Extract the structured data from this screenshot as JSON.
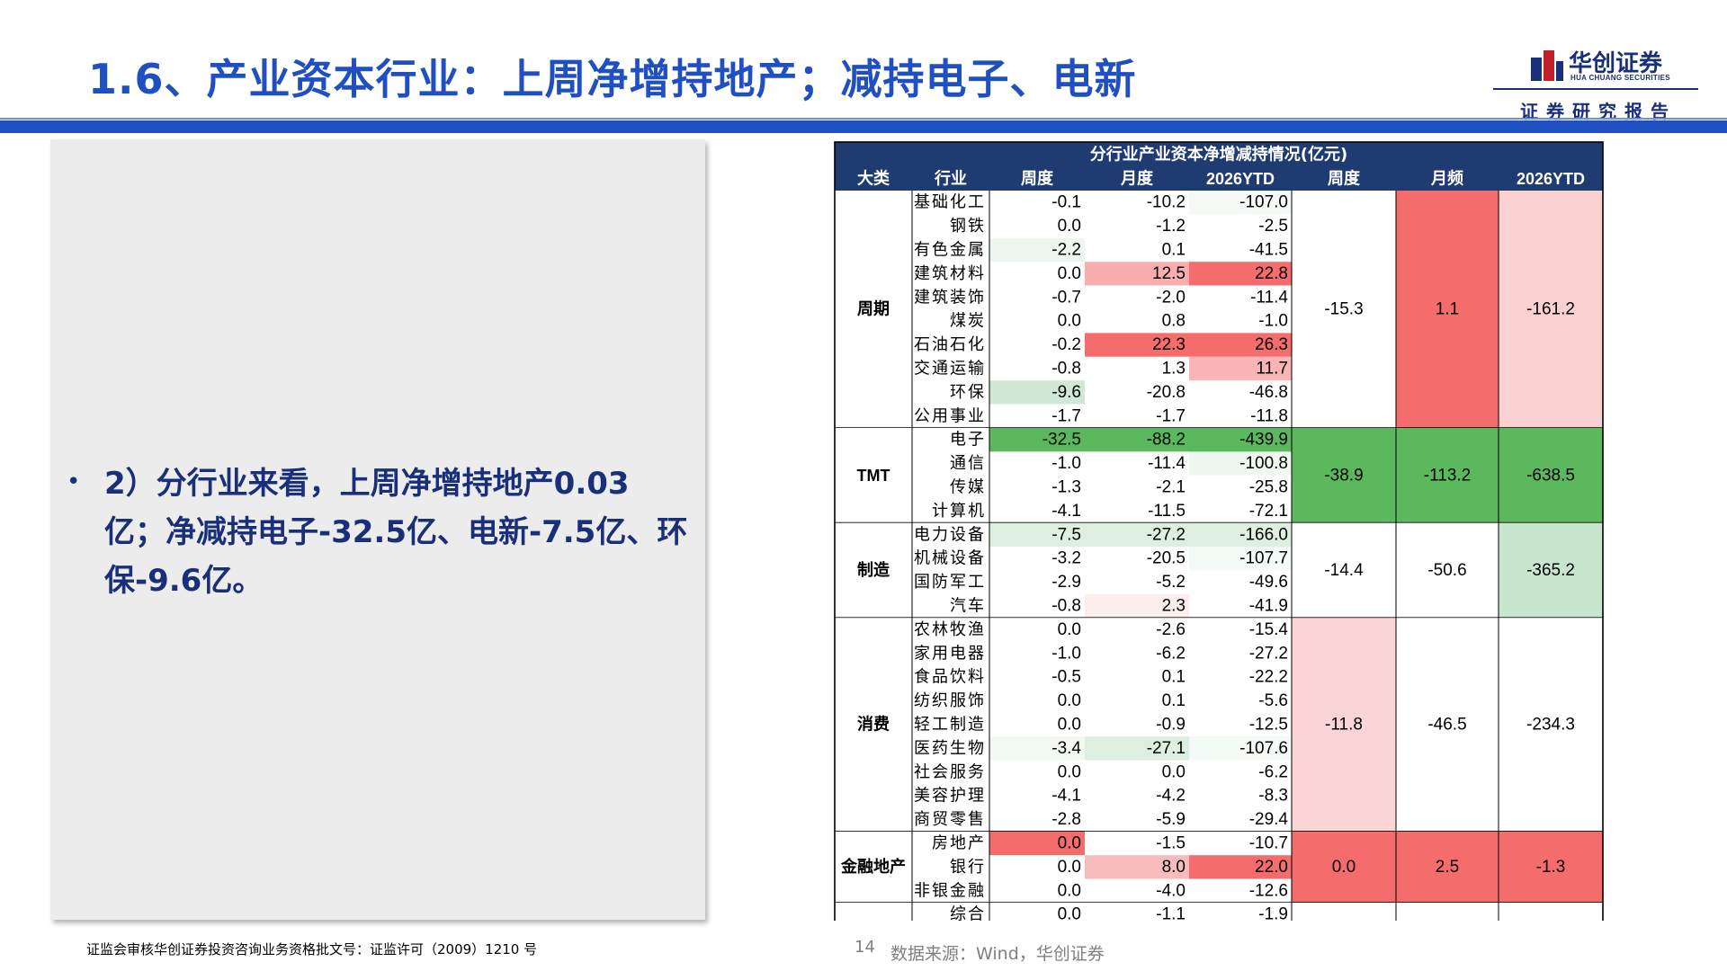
{
  "header": {
    "title": "1.6、产业资本行业：上周净增持地产；减持电子、电新",
    "logo_cn": "华创证券",
    "logo_en": "HUA CHUANG SECURITIES",
    "report_tag": "证券研究报告"
  },
  "left_panel": {
    "bullet": "•",
    "text": "2）分行业来看，上周净增持地产0.03亿；净减持电子-32.5亿、电新-7.5亿、环保-9.6亿。"
  },
  "table": {
    "title": "分行业产业资本净增减持情况(亿元)",
    "headers": [
      "大类",
      "行业",
      "周度",
      "月度",
      "2026YTD",
      "周度",
      "月频",
      "2026YTD"
    ],
    "groups": [
      {
        "name": "周期",
        "summary": [
          "-15.3",
          "1.1",
          "-161.2"
        ],
        "summary_colors": [
          "#ffffff",
          "#f56c6c",
          "#fbd0d0"
        ],
        "rows": [
          {
            "industry": "基础化工",
            "vals": [
              "-0.1",
              "-10.2",
              "-107.0"
            ],
            "colors": [
              "#ffffff",
              "#ffffff",
              "#f6faf7"
            ]
          },
          {
            "industry": "钢铁",
            "vals": [
              "0.0",
              "-1.2",
              "-2.5"
            ],
            "colors": [
              "#ffffff",
              "#ffffff",
              "#ffffff"
            ]
          },
          {
            "industry": "有色金属",
            "vals": [
              "-2.2",
              "0.1",
              "-41.5"
            ],
            "colors": [
              "#edf6ef",
              "#ffffff",
              "#ffffff"
            ]
          },
          {
            "industry": "建筑材料",
            "vals": [
              "0.0",
              "12.5",
              "22.8"
            ],
            "colors": [
              "#ffffff",
              "#f8aeae",
              "#f56c6c"
            ]
          },
          {
            "industry": "建筑装饰",
            "vals": [
              "-0.7",
              "-2.0",
              "-11.4"
            ],
            "colors": [
              "#ffffff",
              "#ffffff",
              "#ffffff"
            ]
          },
          {
            "industry": "煤炭",
            "vals": [
              "0.0",
              "0.8",
              "-1.0"
            ],
            "colors": [
              "#ffffff",
              "#ffffff",
              "#ffffff"
            ]
          },
          {
            "industry": "石油石化",
            "vals": [
              "-0.2",
              "22.3",
              "26.3"
            ],
            "colors": [
              "#ffffff",
              "#f56c6c",
              "#f56c6c"
            ]
          },
          {
            "industry": "交通运输",
            "vals": [
              "-0.8",
              "1.3",
              "11.7"
            ],
            "colors": [
              "#ffffff",
              "#ffffff",
              "#f9b5b5"
            ]
          },
          {
            "industry": "环保",
            "vals": [
              "-9.6",
              "-20.8",
              "-46.8"
            ],
            "colors": [
              "#cfe9d5",
              "#ffffff",
              "#ffffff"
            ]
          },
          {
            "industry": "公用事业",
            "vals": [
              "-1.7",
              "-1.7",
              "-11.8"
            ],
            "colors": [
              "#ffffff",
              "#ffffff",
              "#ffffff"
            ]
          }
        ]
      },
      {
        "name": "TMT",
        "summary": [
          "-38.9",
          "-113.2",
          "-638.5"
        ],
        "summary_colors": [
          "#5cb85c",
          "#5cb85c",
          "#5cb85c"
        ],
        "rows": [
          {
            "industry": "电子",
            "vals": [
              "-32.5",
              "-88.2",
              "-439.9"
            ],
            "colors": [
              "#5cb85c",
              "#5cb85c",
              "#5cb85c"
            ]
          },
          {
            "industry": "通信",
            "vals": [
              "-1.0",
              "-11.4",
              "-100.8"
            ],
            "colors": [
              "#ffffff",
              "#ffffff",
              "#eef7f0"
            ]
          },
          {
            "industry": "传媒",
            "vals": [
              "-1.3",
              "-2.1",
              "-25.8"
            ],
            "colors": [
              "#ffffff",
              "#ffffff",
              "#ffffff"
            ]
          },
          {
            "industry": "计算机",
            "vals": [
              "-4.1",
              "-11.5",
              "-72.1"
            ],
            "colors": [
              "#ffffff",
              "#ffffff",
              "#ffffff"
            ]
          }
        ]
      },
      {
        "name": "制造",
        "summary": [
          "-14.4",
          "-50.6",
          "-365.2"
        ],
        "summary_colors": [
          "#ffffff",
          "#ffffff",
          "#c8e6ce"
        ],
        "rows": [
          {
            "industry": "电力设备",
            "vals": [
              "-7.5",
              "-27.2",
              "-166.0"
            ],
            "colors": [
              "#dcefe0",
              "#dcefe0",
              "#dcefe0"
            ]
          },
          {
            "industry": "机械设备",
            "vals": [
              "-3.2",
              "-20.5",
              "-107.7"
            ],
            "colors": [
              "#ffffff",
              "#ffffff",
              "#f4faf5"
            ]
          },
          {
            "industry": "国防军工",
            "vals": [
              "-2.9",
              "-5.2",
              "-49.6"
            ],
            "colors": [
              "#ffffff",
              "#ffffff",
              "#ffffff"
            ]
          },
          {
            "industry": "汽车",
            "vals": [
              "-0.8",
              "2.3",
              "-41.9"
            ],
            "colors": [
              "#ffffff",
              "#fdeeee",
              "#ffffff"
            ]
          }
        ]
      },
      {
        "name": "消费",
        "summary": [
          "-11.8",
          "-46.5",
          "-234.3"
        ],
        "summary_colors": [
          "#fbd5d5",
          "#ffffff",
          "#ffffff"
        ],
        "rows": [
          {
            "industry": "农林牧渔",
            "vals": [
              "0.0",
              "-2.6",
              "-15.4"
            ],
            "colors": [
              "#ffffff",
              "#ffffff",
              "#ffffff"
            ]
          },
          {
            "industry": "家用电器",
            "vals": [
              "-1.0",
              "-6.2",
              "-27.2"
            ],
            "colors": [
              "#ffffff",
              "#ffffff",
              "#ffffff"
            ]
          },
          {
            "industry": "食品饮料",
            "vals": [
              "-0.5",
              "0.1",
              "-22.2"
            ],
            "colors": [
              "#ffffff",
              "#ffffff",
              "#ffffff"
            ]
          },
          {
            "industry": "纺织服饰",
            "vals": [
              "0.0",
              "0.1",
              "-5.6"
            ],
            "colors": [
              "#ffffff",
              "#ffffff",
              "#ffffff"
            ]
          },
          {
            "industry": "轻工制造",
            "vals": [
              "0.0",
              "-0.9",
              "-12.5"
            ],
            "colors": [
              "#ffffff",
              "#ffffff",
              "#ffffff"
            ]
          },
          {
            "industry": "医药生物",
            "vals": [
              "-3.4",
              "-27.1",
              "-107.6"
            ],
            "colors": [
              "#f2f9f3",
              "#dcefe0",
              "#f4faf5"
            ]
          },
          {
            "industry": "社会服务",
            "vals": [
              "0.0",
              "0.0",
              "-6.2"
            ],
            "colors": [
              "#ffffff",
              "#ffffff",
              "#ffffff"
            ]
          },
          {
            "industry": "美容护理",
            "vals": [
              "-4.1",
              "-4.2",
              "-8.3"
            ],
            "colors": [
              "#ffffff",
              "#ffffff",
              "#ffffff"
            ]
          },
          {
            "industry": "商贸零售",
            "vals": [
              "-2.8",
              "-5.9",
              "-29.4"
            ],
            "colors": [
              "#ffffff",
              "#ffffff",
              "#ffffff"
            ]
          }
        ]
      },
      {
        "name": "金融地产",
        "summary": [
          "0.0",
          "2.5",
          "-1.3"
        ],
        "summary_colors": [
          "#f56c6c",
          "#f56c6c",
          "#f56c6c"
        ],
        "rows": [
          {
            "industry": "房地产",
            "vals": [
              "0.0",
              "-1.5",
              "-10.7"
            ],
            "colors": [
              "#f56c6c",
              "#ffffff",
              "#ffffff"
            ]
          },
          {
            "industry": "银行",
            "vals": [
              "0.0",
              "8.0",
              "22.0"
            ],
            "colors": [
              "#ffffff",
              "#f9bcbc",
              "#f56c6c"
            ]
          },
          {
            "industry": "非银金融",
            "vals": [
              "0.0",
              "-4.0",
              "-12.6"
            ],
            "colors": [
              "#ffffff",
              "#ffffff",
              "#ffffff"
            ]
          }
        ]
      },
      {
        "name": "",
        "summary": [
          "",
          "",
          ""
        ],
        "summary_colors": [
          "#ffffff",
          "#ffffff",
          "#ffffff"
        ],
        "rows": [
          {
            "industry": "综合",
            "vals": [
              "0.0",
              "-1.1",
              "-1.9"
            ],
            "colors": [
              "#ffffff",
              "#ffffff",
              "#ffffff"
            ]
          }
        ]
      }
    ]
  },
  "footer": {
    "license": "证监会审核华创证券投资咨询业务资格批文号：证监许可（2009）1210 号",
    "page": "14",
    "source": "数据来源：Wind，华创证券"
  },
  "colors": {
    "brand_blue": "#1f4fc1",
    "navy": "#1a2f7a",
    "header_bg": "#1e3c72",
    "red": "#f56c6c",
    "green": "#5cb85c"
  }
}
